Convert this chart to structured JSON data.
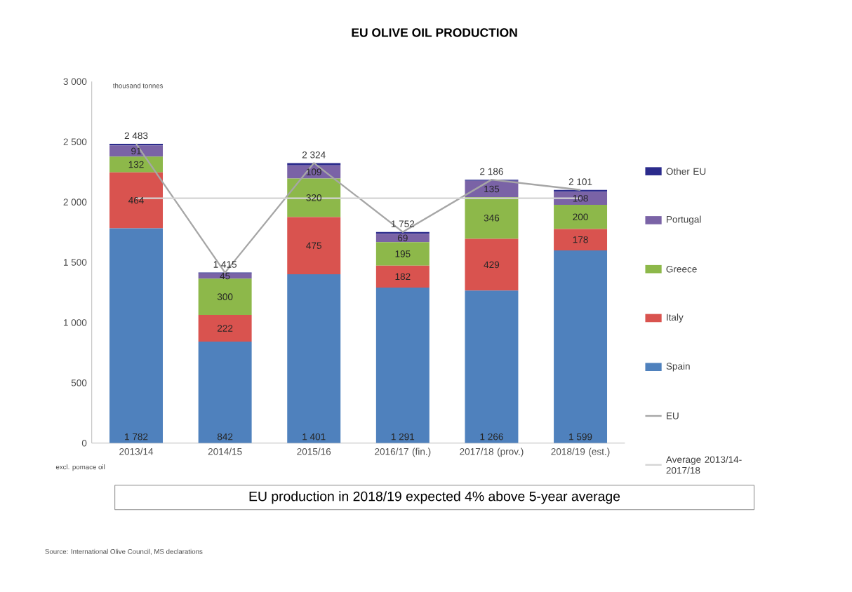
{
  "chart_data": {
    "type": "bar",
    "title": "EU OLIVE OIL PRODUCTION",
    "ylabel": "thousand tonnes",
    "categories": [
      "2013/14",
      "2014/15",
      "2015/16",
      "2016/17 (fin.)",
      "2017/18 (prov.)",
      "2018/19 (est.)"
    ],
    "stacked": true,
    "legend": "right",
    "ylim": [
      0,
      3000
    ],
    "yticks": [
      0,
      500,
      {
        "value": 1000,
        "label": "1 000"
      },
      {
        "value": 1500,
        "label": "1 500"
      },
      {
        "value": 2000,
        "label": "2 000"
      },
      {
        "value": 2500,
        "label": "2 500"
      },
      {
        "value": 3000,
        "label": "3 000"
      }
    ],
    "series": [
      {
        "name": "Spain",
        "color": "#4f81bd",
        "values": [
          1782,
          842,
          1401,
          1291,
          1266,
          1599
        ],
        "value_labels": [
          "1 782",
          "842",
          "1 401",
          "1 291",
          "1 266",
          "1 599"
        ]
      },
      {
        "name": "Italy",
        "color": "#d9534f",
        "values": [
          464,
          222,
          475,
          182,
          429,
          178
        ],
        "value_labels": [
          "464",
          "222",
          "475",
          "182",
          "429",
          "178"
        ]
      },
      {
        "name": "Greece",
        "color": "#8db84a",
        "values": [
          132,
          300,
          320,
          195,
          346,
          200
        ],
        "value_labels": [
          "132",
          "300",
          "320",
          "195",
          "346",
          "200"
        ]
      },
      {
        "name": "Portugal",
        "color": "#7a63a6",
        "values": [
          91,
          45,
          109,
          69,
          135,
          108
        ],
        "value_labels": [
          "91",
          "45",
          "109",
          "69",
          "135",
          "108"
        ]
      },
      {
        "name": "Other EU",
        "color": "#2b2b8c",
        "values": [
          14,
          6,
          19,
          15,
          10,
          16
        ]
      },
      {
        "name": "EU",
        "type": "line",
        "color": "#a6a6a6",
        "values": [
          2483,
          1415,
          2324,
          1752,
          2186,
          2101
        ]
      },
      {
        "name": "Average 2013/14-2017/18",
        "type": "line",
        "color": "#d4d4d4",
        "values": [
          2032,
          2032,
          2032,
          2032,
          2032,
          2032
        ]
      }
    ],
    "totals": [
      "2 483",
      "1 415",
      "2 324",
      "1 752",
      "2 186",
      "2 101"
    ],
    "annotations": [
      "excl. pomace oil",
      "EU production in 2018/19 expected 4% above 5-year average",
      "Source: International Olive Council, MS declarations"
    ]
  }
}
